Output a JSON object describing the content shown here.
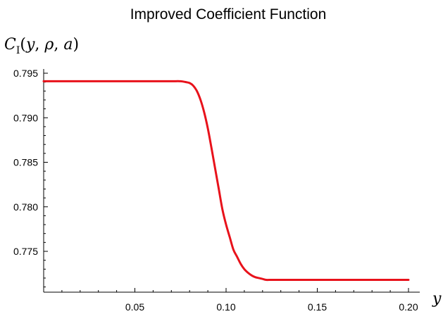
{
  "chart_data": {
    "type": "line",
    "title": "Improved Coefficient Function",
    "ylabel": {
      "main": "C",
      "sub": "I",
      "args_open": "(",
      "y": "y",
      "sep1": ", ",
      "rho": "ρ",
      "sep2": ", ",
      "a": "a",
      "args_close": ")"
    },
    "xlabel": "y",
    "xlim": [
      0,
      0.2
    ],
    "ylim": [
      0.7705,
      0.7955
    ],
    "x_ticks": [
      0.05,
      0.1,
      0.15,
      0.2
    ],
    "x_tick_labels": [
      "0.05",
      "0.10",
      "0.15",
      "0.20"
    ],
    "y_ticks": [
      0.775,
      0.78,
      0.785,
      0.79,
      0.795
    ],
    "y_tick_labels": [
      "0.775",
      "0.780",
      "0.785",
      "0.790",
      "0.795"
    ],
    "grid": false,
    "series": [
      {
        "color": "#e8121b",
        "x": [
          0.0,
          0.01,
          0.02,
          0.03,
          0.04,
          0.05,
          0.06,
          0.07,
          0.075,
          0.078,
          0.08,
          0.082,
          0.084,
          0.086,
          0.088,
          0.09,
          0.092,
          0.094,
          0.096,
          0.098,
          0.1,
          0.102,
          0.104,
          0.106,
          0.108,
          0.11,
          0.112,
          0.114,
          0.116,
          0.118,
          0.12,
          0.122,
          0.125,
          0.13,
          0.14,
          0.15,
          0.16,
          0.17,
          0.18,
          0.19,
          0.2
        ],
        "y": [
          0.7941,
          0.7941,
          0.7941,
          0.7941,
          0.7941,
          0.7941,
          0.7941,
          0.7941,
          0.7941,
          0.794,
          0.7939,
          0.7936,
          0.793,
          0.792,
          0.7906,
          0.7888,
          0.7866,
          0.7843,
          0.782,
          0.7797,
          0.778,
          0.7766,
          0.7752,
          0.7744,
          0.7736,
          0.773,
          0.7726,
          0.7723,
          0.7721,
          0.772,
          0.7719,
          0.7718,
          0.7718,
          0.7718,
          0.7718,
          0.7718,
          0.7718,
          0.7718,
          0.7718,
          0.7718,
          0.7718
        ]
      }
    ]
  }
}
